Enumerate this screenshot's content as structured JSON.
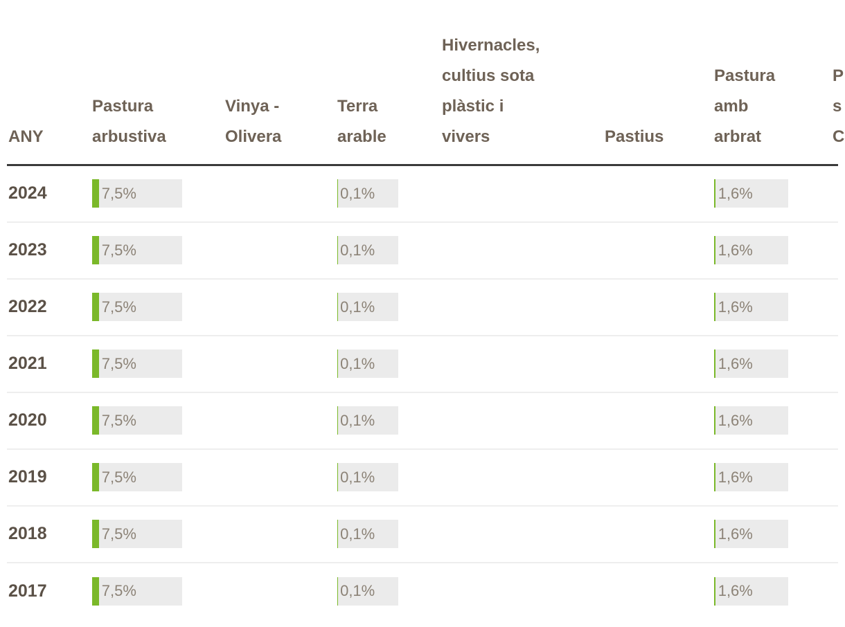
{
  "colors": {
    "bar_green": "#7ab829",
    "cell_background": "#ebebeb",
    "header_rule": "#3a3a3a",
    "row_divider": "#eeeeee",
    "header_text": "#6e6256",
    "year_text": "#5b5147",
    "value_text": "#8c8377"
  },
  "table": {
    "columns": [
      {
        "id": "any",
        "lines": [
          "ANY"
        ]
      },
      {
        "id": "pastura-arbustiva",
        "lines": [
          "Pastura",
          "arbustiva"
        ]
      },
      {
        "id": "vinya-olivera",
        "lines": [
          "Vinya -",
          "Olivera"
        ]
      },
      {
        "id": "terra-arable",
        "lines": [
          "Terra",
          "arable"
        ]
      },
      {
        "id": "hivernacles",
        "lines": [
          "Hivernacles,",
          "cultius sota",
          "plàstic i",
          "vivers"
        ]
      },
      {
        "id": "pastius",
        "lines": [
          "Pastius"
        ]
      },
      {
        "id": "pastura-amb-arbrat",
        "lines": [
          "Pastura",
          "amb",
          "arbrat"
        ]
      },
      {
        "id": "truncated-right",
        "lines": [
          "P",
          "s",
          "C"
        ]
      }
    ],
    "rows": [
      {
        "year": "2024",
        "pastura_arbustiva": {
          "label": "7,5%",
          "pct": 7.5
        },
        "terra_arable": {
          "label": "0,1%",
          "pct": 0.1
        },
        "pastura_amb_arbrat": {
          "label": "1,6%",
          "pct": 1.6
        }
      },
      {
        "year": "2023",
        "pastura_arbustiva": {
          "label": "7,5%",
          "pct": 7.5
        },
        "terra_arable": {
          "label": "0,1%",
          "pct": 0.1
        },
        "pastura_amb_arbrat": {
          "label": "1,6%",
          "pct": 1.6
        }
      },
      {
        "year": "2022",
        "pastura_arbustiva": {
          "label": "7,5%",
          "pct": 7.5
        },
        "terra_arable": {
          "label": "0,1%",
          "pct": 0.1
        },
        "pastura_amb_arbrat": {
          "label": "1,6%",
          "pct": 1.6
        }
      },
      {
        "year": "2021",
        "pastura_arbustiva": {
          "label": "7,5%",
          "pct": 7.5
        },
        "terra_arable": {
          "label": "0,1%",
          "pct": 0.1
        },
        "pastura_amb_arbrat": {
          "label": "1,6%",
          "pct": 1.6
        }
      },
      {
        "year": "2020",
        "pastura_arbustiva": {
          "label": "7,5%",
          "pct": 7.5
        },
        "terra_arable": {
          "label": "0,1%",
          "pct": 0.1
        },
        "pastura_amb_arbrat": {
          "label": "1,6%",
          "pct": 1.6
        }
      },
      {
        "year": "2019",
        "pastura_arbustiva": {
          "label": "7,5%",
          "pct": 7.5
        },
        "terra_arable": {
          "label": "0,1%",
          "pct": 0.1
        },
        "pastura_amb_arbrat": {
          "label": "1,6%",
          "pct": 1.6
        }
      },
      {
        "year": "2018",
        "pastura_arbustiva": {
          "label": "7,5%",
          "pct": 7.5
        },
        "terra_arable": {
          "label": "0,1%",
          "pct": 0.1
        },
        "pastura_amb_arbrat": {
          "label": "1,6%",
          "pct": 1.6
        }
      },
      {
        "year": "2017",
        "pastura_arbustiva": {
          "label": "7,5%",
          "pct": 7.5
        },
        "terra_arable": {
          "label": "0,1%",
          "pct": 0.1
        },
        "pastura_amb_arbrat": {
          "label": "1,6%",
          "pct": 1.6
        }
      }
    ]
  },
  "chart_data": {
    "type": "table",
    "title": "",
    "categories": [
      "2024",
      "2023",
      "2022",
      "2021",
      "2020",
      "2019",
      "2018",
      "2017"
    ],
    "category_column": "ANY",
    "series": [
      {
        "name": "Pastura arbustiva",
        "values": [
          7.5,
          7.5,
          7.5,
          7.5,
          7.5,
          7.5,
          7.5,
          7.5
        ]
      },
      {
        "name": "Vinya - Olivera",
        "values": [
          null,
          null,
          null,
          null,
          null,
          null,
          null,
          null
        ]
      },
      {
        "name": "Terra arable",
        "values": [
          0.1,
          0.1,
          0.1,
          0.1,
          0.1,
          0.1,
          0.1,
          0.1
        ]
      },
      {
        "name": "Hivernacles, cultius sota plàstic i vivers",
        "values": [
          null,
          null,
          null,
          null,
          null,
          null,
          null,
          null
        ]
      },
      {
        "name": "Pastius",
        "values": [
          null,
          null,
          null,
          null,
          null,
          null,
          null,
          null
        ]
      },
      {
        "name": "Pastura amb arbrat",
        "values": [
          1.6,
          1.6,
          1.6,
          1.6,
          1.6,
          1.6,
          1.6,
          1.6
        ]
      }
    ],
    "unit": "%",
    "value_format": "comma-decimal",
    "bar_color": "#7ab829",
    "legend_position": "none",
    "grid": false
  }
}
